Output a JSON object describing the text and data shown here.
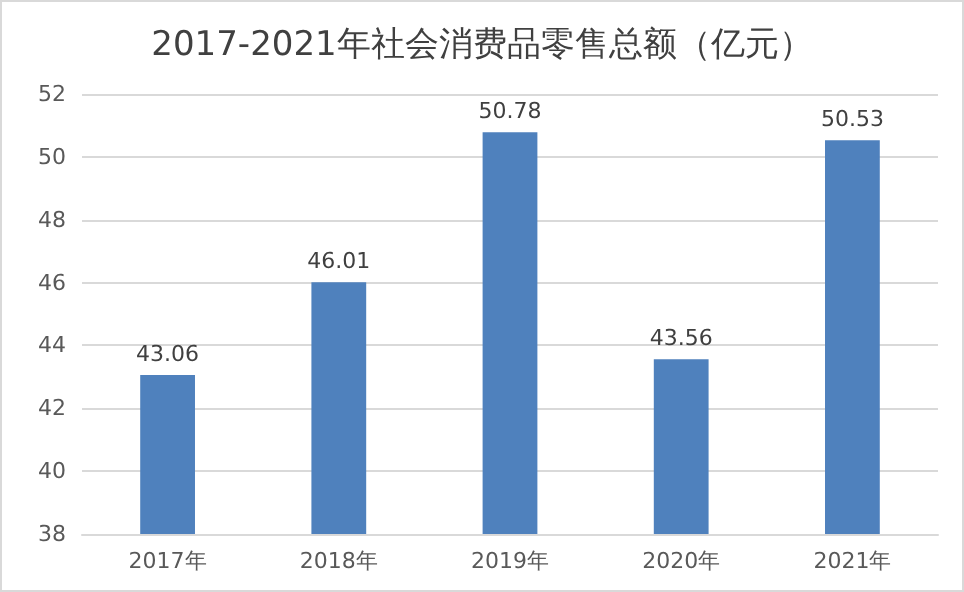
{
  "chart_data": {
    "type": "bar",
    "title": "2017-2021年社会消费品零售总额（亿元）",
    "categories": [
      "2017年",
      "2018年",
      "2019年",
      "2020年",
      "2021年"
    ],
    "values": [
      43.06,
      46.01,
      50.78,
      43.56,
      50.53
    ],
    "color": "#4f81bd",
    "ylim": [
      38,
      52
    ],
    "yticks": [
      38,
      40,
      42,
      44,
      46,
      48,
      50,
      52
    ],
    "grid": "y",
    "data_labels": true
  }
}
